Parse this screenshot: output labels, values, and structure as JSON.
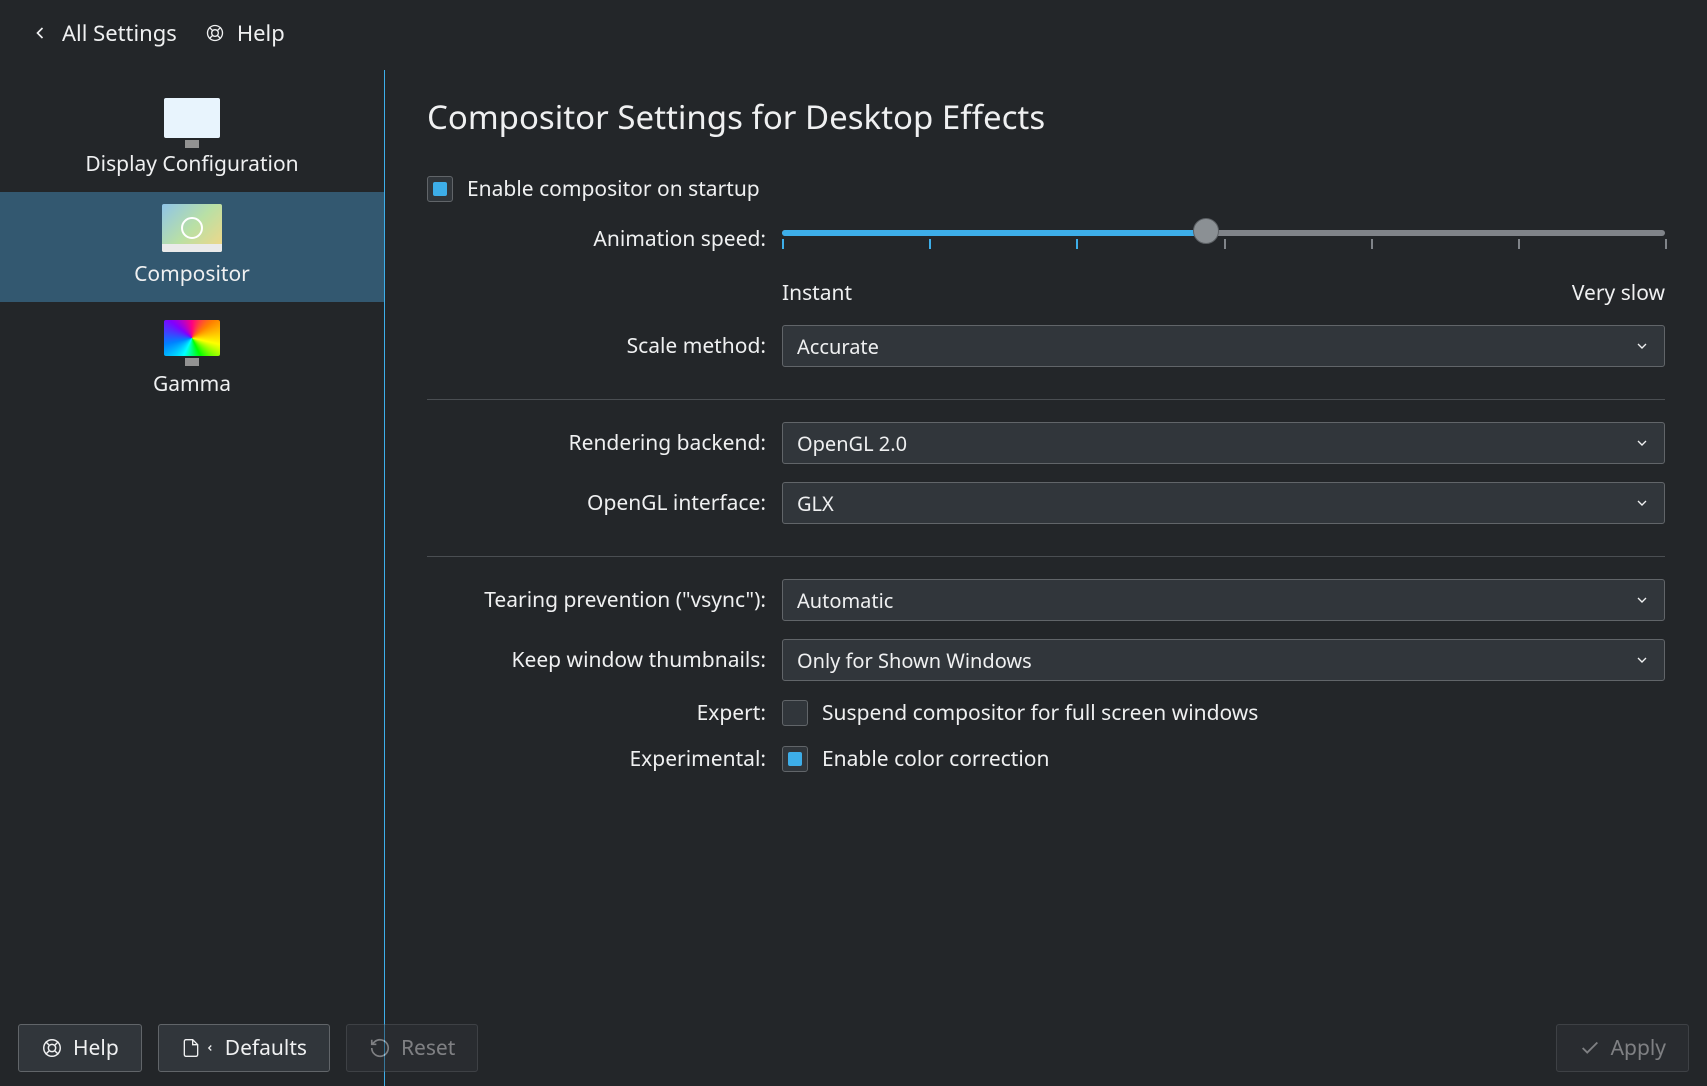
{
  "toolbar": {
    "all_settings": "All Settings",
    "help": "Help"
  },
  "sidebar": {
    "items": [
      {
        "label": "Display Configuration"
      },
      {
        "label": "Compositor"
      },
      {
        "label": "Gamma"
      }
    ],
    "selected_index": 1
  },
  "page": {
    "title": "Compositor Settings for Desktop Effects",
    "enable_startup_label": "Enable compositor on startup",
    "enable_startup_checked": true,
    "animation_speed_label": "Animation speed:",
    "slider": {
      "fill_pct": 48,
      "tick_count": 7,
      "labels_left": "Instant",
      "labels_right": "Very slow"
    },
    "scale_method_label": "Scale method:",
    "scale_method_value": "Accurate",
    "rendering_backend_label": "Rendering backend:",
    "rendering_backend_value": "OpenGL 2.0",
    "opengl_interface_label": "OpenGL interface:",
    "opengl_interface_value": "GLX",
    "tearing_label": "Tearing prevention (\"vsync\"):",
    "tearing_value": "Automatic",
    "thumbnails_label": "Keep window thumbnails:",
    "thumbnails_value": "Only for Shown Windows",
    "expert_label": "Expert:",
    "expert_check_label": "Suspend compositor for full screen windows",
    "expert_checked": false,
    "experimental_label": "Experimental:",
    "experimental_check_label": "Enable color correction",
    "experimental_checked": true
  },
  "footer": {
    "help": "Help",
    "defaults": "Defaults",
    "reset": "Reset",
    "apply": "Apply"
  },
  "colors": {
    "accent": "#3daee9",
    "bg": "#232629",
    "panel": "#31363b",
    "border": "#616569",
    "text": "#eff0f1",
    "muted": "#808489"
  }
}
